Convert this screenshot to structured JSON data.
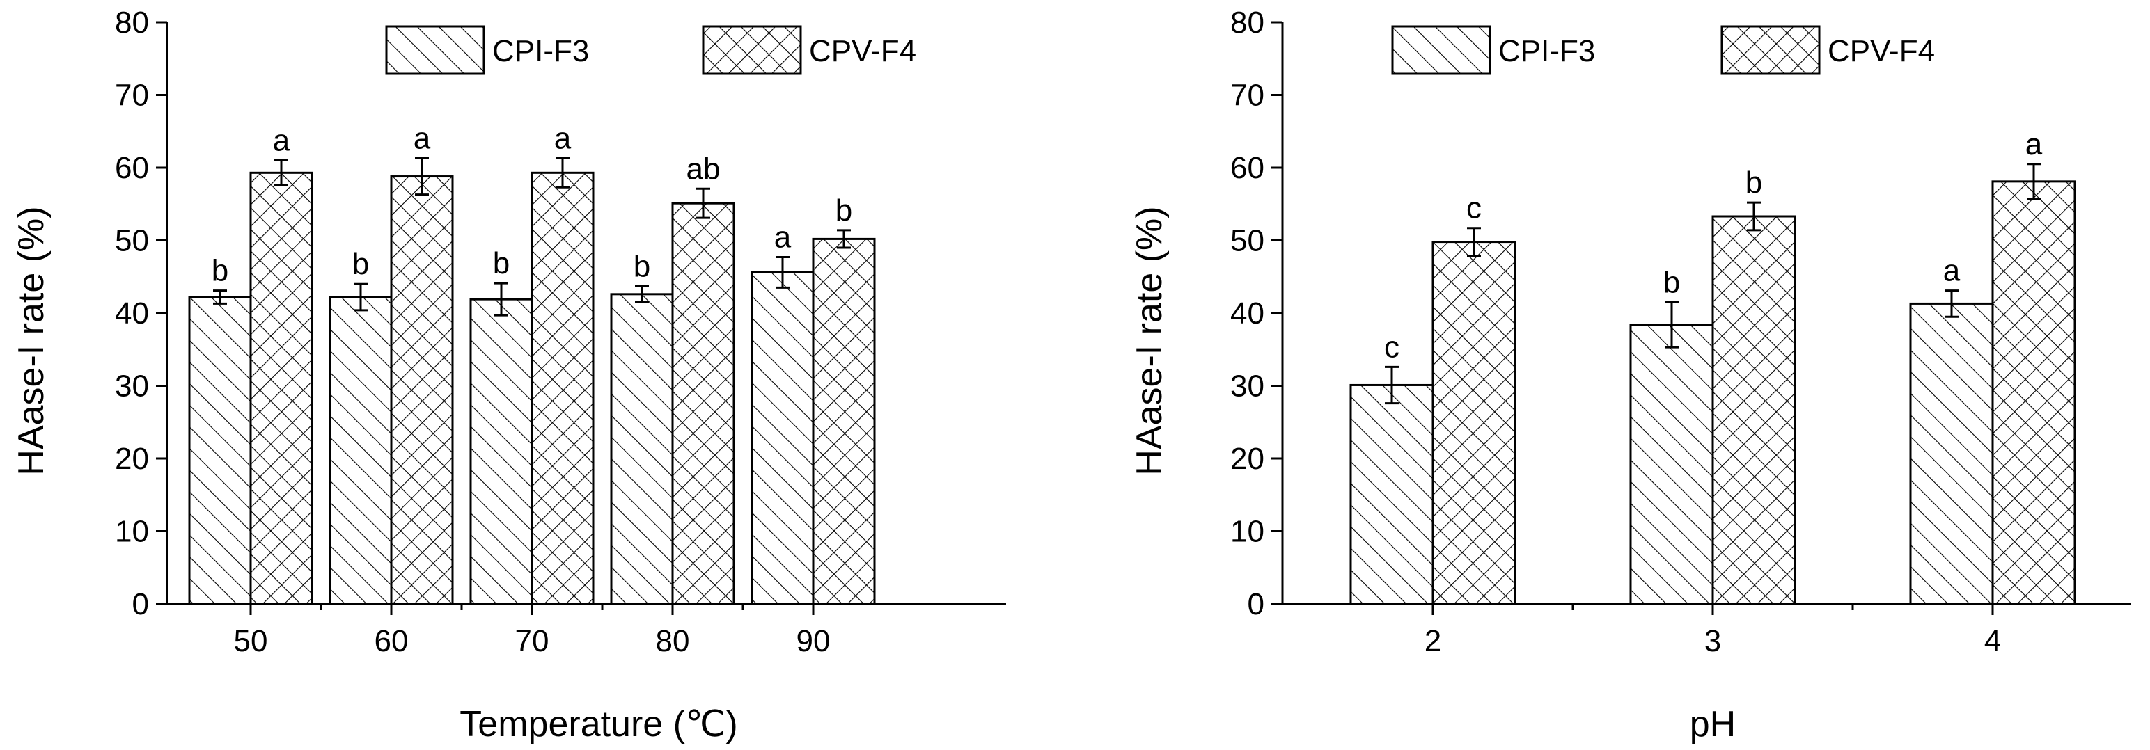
{
  "chart_data": [
    {
      "type": "bar",
      "title": "",
      "xlabel": "Temperature (℃)",
      "ylabel": "HAase-I rate (%)",
      "ylim": [
        0,
        80
      ],
      "yticks": [
        "0",
        "10",
        "20",
        "30",
        "40",
        "50",
        "60",
        "70",
        "80"
      ],
      "categories": [
        "50",
        "60",
        "70",
        "80",
        "90"
      ],
      "legend_position": "top-center",
      "series": [
        {
          "name": "CPI-F3",
          "pattern": "diagonal-hatch",
          "values": [
            42.2,
            42.2,
            41.9,
            42.6,
            45.6
          ],
          "errors": [
            0.9,
            1.8,
            2.2,
            1.1,
            2.1
          ],
          "labels": [
            "b",
            "b",
            "b",
            "b",
            "a"
          ]
        },
        {
          "name": "CPV-F4",
          "pattern": "cross-hatch",
          "values": [
            59.3,
            58.8,
            59.3,
            55.1,
            50.2
          ],
          "errors": [
            1.7,
            2.5,
            2.0,
            2.0,
            1.2
          ],
          "labels": [
            "a",
            "a",
            "a",
            "ab",
            "b"
          ]
        }
      ]
    },
    {
      "type": "bar",
      "title": "",
      "xlabel": "pH",
      "ylabel": "HAase-I rate (%)",
      "ylim": [
        0,
        80
      ],
      "yticks": [
        "0",
        "10",
        "20",
        "30",
        "40",
        "50",
        "60",
        "70",
        "80"
      ],
      "categories": [
        "2",
        "3",
        "4"
      ],
      "legend_position": "top-center",
      "series": [
        {
          "name": "CPI-F3",
          "pattern": "diagonal-hatch",
          "values": [
            30.1,
            38.4,
            41.3
          ],
          "errors": [
            2.5,
            3.1,
            1.8
          ],
          "labels": [
            "c",
            "b",
            "a"
          ]
        },
        {
          "name": "CPV-F4",
          "pattern": "cross-hatch",
          "values": [
            49.8,
            53.3,
            58.1
          ],
          "errors": [
            1.9,
            1.9,
            2.4
          ],
          "labels": [
            "c",
            "b",
            "a"
          ]
        }
      ]
    }
  ]
}
